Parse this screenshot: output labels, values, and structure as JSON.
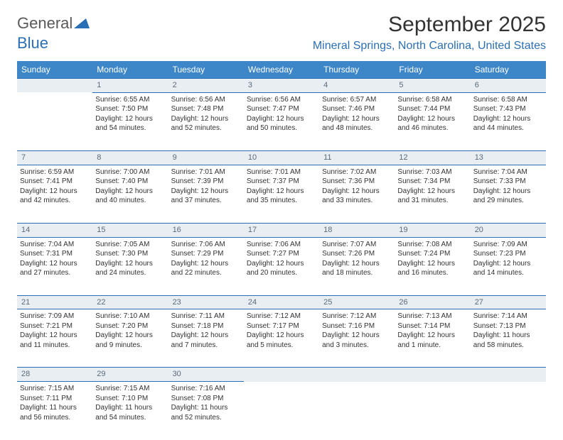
{
  "brand": {
    "part1": "General",
    "part2": "Blue"
  },
  "title": "September 2025",
  "location": "Mineral Springs, North Carolina, United States",
  "colors": {
    "header_bg": "#3d87c9",
    "accent": "#2a6fb5",
    "daynum_bg": "#e9eef3",
    "text": "#333333"
  },
  "day_headers": [
    "Sunday",
    "Monday",
    "Tuesday",
    "Wednesday",
    "Thursday",
    "Friday",
    "Saturday"
  ],
  "weeks": [
    {
      "nums": [
        "",
        "1",
        "2",
        "3",
        "4",
        "5",
        "6"
      ],
      "cells": [
        null,
        {
          "sr": "Sunrise: 6:55 AM",
          "ss": "Sunset: 7:50 PM",
          "dl": "Daylight: 12 hours and 54 minutes."
        },
        {
          "sr": "Sunrise: 6:56 AM",
          "ss": "Sunset: 7:48 PM",
          "dl": "Daylight: 12 hours and 52 minutes."
        },
        {
          "sr": "Sunrise: 6:56 AM",
          "ss": "Sunset: 7:47 PM",
          "dl": "Daylight: 12 hours and 50 minutes."
        },
        {
          "sr": "Sunrise: 6:57 AM",
          "ss": "Sunset: 7:46 PM",
          "dl": "Daylight: 12 hours and 48 minutes."
        },
        {
          "sr": "Sunrise: 6:58 AM",
          "ss": "Sunset: 7:44 PM",
          "dl": "Daylight: 12 hours and 46 minutes."
        },
        {
          "sr": "Sunrise: 6:58 AM",
          "ss": "Sunset: 7:43 PM",
          "dl": "Daylight: 12 hours and 44 minutes."
        }
      ]
    },
    {
      "nums": [
        "7",
        "8",
        "9",
        "10",
        "11",
        "12",
        "13"
      ],
      "cells": [
        {
          "sr": "Sunrise: 6:59 AM",
          "ss": "Sunset: 7:41 PM",
          "dl": "Daylight: 12 hours and 42 minutes."
        },
        {
          "sr": "Sunrise: 7:00 AM",
          "ss": "Sunset: 7:40 PM",
          "dl": "Daylight: 12 hours and 40 minutes."
        },
        {
          "sr": "Sunrise: 7:01 AM",
          "ss": "Sunset: 7:39 PM",
          "dl": "Daylight: 12 hours and 37 minutes."
        },
        {
          "sr": "Sunrise: 7:01 AM",
          "ss": "Sunset: 7:37 PM",
          "dl": "Daylight: 12 hours and 35 minutes."
        },
        {
          "sr": "Sunrise: 7:02 AM",
          "ss": "Sunset: 7:36 PM",
          "dl": "Daylight: 12 hours and 33 minutes."
        },
        {
          "sr": "Sunrise: 7:03 AM",
          "ss": "Sunset: 7:34 PM",
          "dl": "Daylight: 12 hours and 31 minutes."
        },
        {
          "sr": "Sunrise: 7:04 AM",
          "ss": "Sunset: 7:33 PM",
          "dl": "Daylight: 12 hours and 29 minutes."
        }
      ]
    },
    {
      "nums": [
        "14",
        "15",
        "16",
        "17",
        "18",
        "19",
        "20"
      ],
      "cells": [
        {
          "sr": "Sunrise: 7:04 AM",
          "ss": "Sunset: 7:31 PM",
          "dl": "Daylight: 12 hours and 27 minutes."
        },
        {
          "sr": "Sunrise: 7:05 AM",
          "ss": "Sunset: 7:30 PM",
          "dl": "Daylight: 12 hours and 24 minutes."
        },
        {
          "sr": "Sunrise: 7:06 AM",
          "ss": "Sunset: 7:29 PM",
          "dl": "Daylight: 12 hours and 22 minutes."
        },
        {
          "sr": "Sunrise: 7:06 AM",
          "ss": "Sunset: 7:27 PM",
          "dl": "Daylight: 12 hours and 20 minutes."
        },
        {
          "sr": "Sunrise: 7:07 AM",
          "ss": "Sunset: 7:26 PM",
          "dl": "Daylight: 12 hours and 18 minutes."
        },
        {
          "sr": "Sunrise: 7:08 AM",
          "ss": "Sunset: 7:24 PM",
          "dl": "Daylight: 12 hours and 16 minutes."
        },
        {
          "sr": "Sunrise: 7:09 AM",
          "ss": "Sunset: 7:23 PM",
          "dl": "Daylight: 12 hours and 14 minutes."
        }
      ]
    },
    {
      "nums": [
        "21",
        "22",
        "23",
        "24",
        "25",
        "26",
        "27"
      ],
      "cells": [
        {
          "sr": "Sunrise: 7:09 AM",
          "ss": "Sunset: 7:21 PM",
          "dl": "Daylight: 12 hours and 11 minutes."
        },
        {
          "sr": "Sunrise: 7:10 AM",
          "ss": "Sunset: 7:20 PM",
          "dl": "Daylight: 12 hours and 9 minutes."
        },
        {
          "sr": "Sunrise: 7:11 AM",
          "ss": "Sunset: 7:18 PM",
          "dl": "Daylight: 12 hours and 7 minutes."
        },
        {
          "sr": "Sunrise: 7:12 AM",
          "ss": "Sunset: 7:17 PM",
          "dl": "Daylight: 12 hours and 5 minutes."
        },
        {
          "sr": "Sunrise: 7:12 AM",
          "ss": "Sunset: 7:16 PM",
          "dl": "Daylight: 12 hours and 3 minutes."
        },
        {
          "sr": "Sunrise: 7:13 AM",
          "ss": "Sunset: 7:14 PM",
          "dl": "Daylight: 12 hours and 1 minute."
        },
        {
          "sr": "Sunrise: 7:14 AM",
          "ss": "Sunset: 7:13 PM",
          "dl": "Daylight: 11 hours and 58 minutes."
        }
      ]
    },
    {
      "nums": [
        "28",
        "29",
        "30",
        "",
        "",
        "",
        ""
      ],
      "cells": [
        {
          "sr": "Sunrise: 7:15 AM",
          "ss": "Sunset: 7:11 PM",
          "dl": "Daylight: 11 hours and 56 minutes."
        },
        {
          "sr": "Sunrise: 7:15 AM",
          "ss": "Sunset: 7:10 PM",
          "dl": "Daylight: 11 hours and 54 minutes."
        },
        {
          "sr": "Sunrise: 7:16 AM",
          "ss": "Sunset: 7:08 PM",
          "dl": "Daylight: 11 hours and 52 minutes."
        },
        null,
        null,
        null,
        null
      ]
    }
  ]
}
